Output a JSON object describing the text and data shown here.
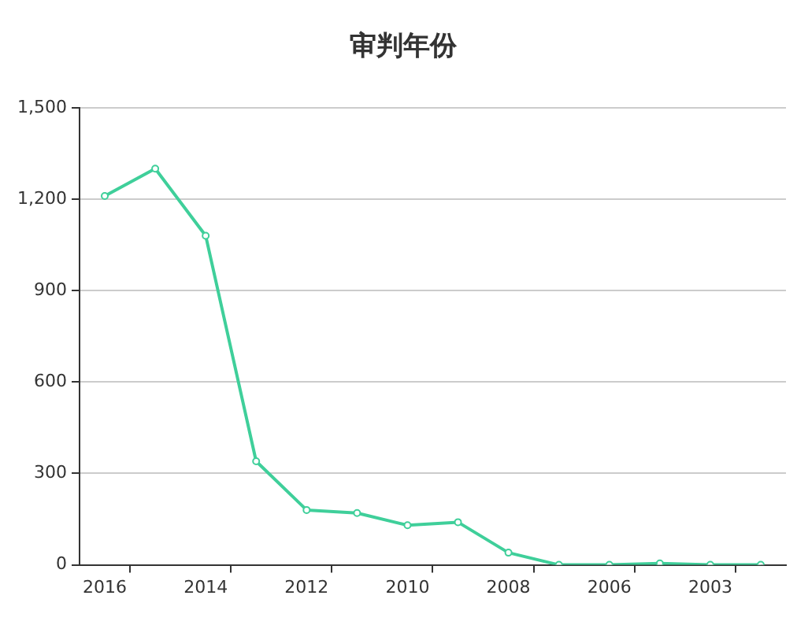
{
  "chart_data": {
    "type": "line",
    "title": "审判年份",
    "categories": [
      "2016",
      null,
      "2014",
      null,
      "2012",
      null,
      "2010",
      null,
      "2008",
      null,
      "2006",
      null,
      "2003",
      null
    ],
    "series": [
      {
        "color": "#3fcf9a",
        "values": [
          1210,
          1300,
          1080,
          340,
          180,
          170,
          130,
          140,
          40,
          0,
          0,
          5,
          0,
          0
        ]
      }
    ],
    "ylim": [
      0,
      1500
    ],
    "yticks": [
      0,
      300,
      600,
      900,
      {
        "value": 1200,
        "label": "1,200"
      },
      {
        "value": 1500,
        "label": "1,500"
      }
    ],
    "grid": "y",
    "legend": false,
    "marker": "circle",
    "line_style": "solid"
  }
}
